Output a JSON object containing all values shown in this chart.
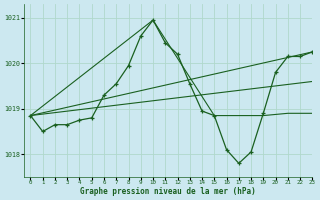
{
  "title": "Graphe pression niveau de la mer (hPa)",
  "background_color": "#cce8f0",
  "grid_color": "#b0d8cc",
  "line_color": "#1a6020",
  "xlim": [
    -0.5,
    23
  ],
  "ylim": [
    1017.5,
    1021.3
  ],
  "yticks": [
    1018,
    1019,
    1020,
    1021
  ],
  "xticks": [
    0,
    1,
    2,
    3,
    4,
    5,
    6,
    7,
    8,
    9,
    10,
    11,
    12,
    13,
    14,
    15,
    16,
    17,
    18,
    19,
    20,
    21,
    22,
    23
  ],
  "series1_x": [
    0,
    1,
    2,
    3,
    4,
    5,
    6,
    7,
    8,
    9,
    10,
    11,
    12,
    13,
    14,
    15,
    16,
    17,
    18,
    19,
    20,
    21,
    22,
    23
  ],
  "series1_y": [
    1018.85,
    1018.5,
    1018.65,
    1018.65,
    1018.75,
    1018.8,
    1019.3,
    1019.55,
    1019.95,
    1020.6,
    1020.95,
    1020.45,
    1020.2,
    1019.55,
    1018.95,
    1018.85,
    1018.1,
    1017.8,
    1018.05,
    1018.9,
    1019.8,
    1020.15,
    1020.15,
    1020.25
  ],
  "series2_x": [
    0,
    10,
    15,
    19,
    21,
    22,
    23
  ],
  "series2_y": [
    1018.85,
    1020.95,
    1018.85,
    1018.85,
    1018.9,
    1018.9,
    1018.9
  ],
  "series3_x": [
    0,
    23
  ],
  "series3_y": [
    1018.85,
    1020.25
  ],
  "series4_x": [
    0,
    23
  ],
  "series4_y": [
    1018.85,
    1019.6
  ]
}
